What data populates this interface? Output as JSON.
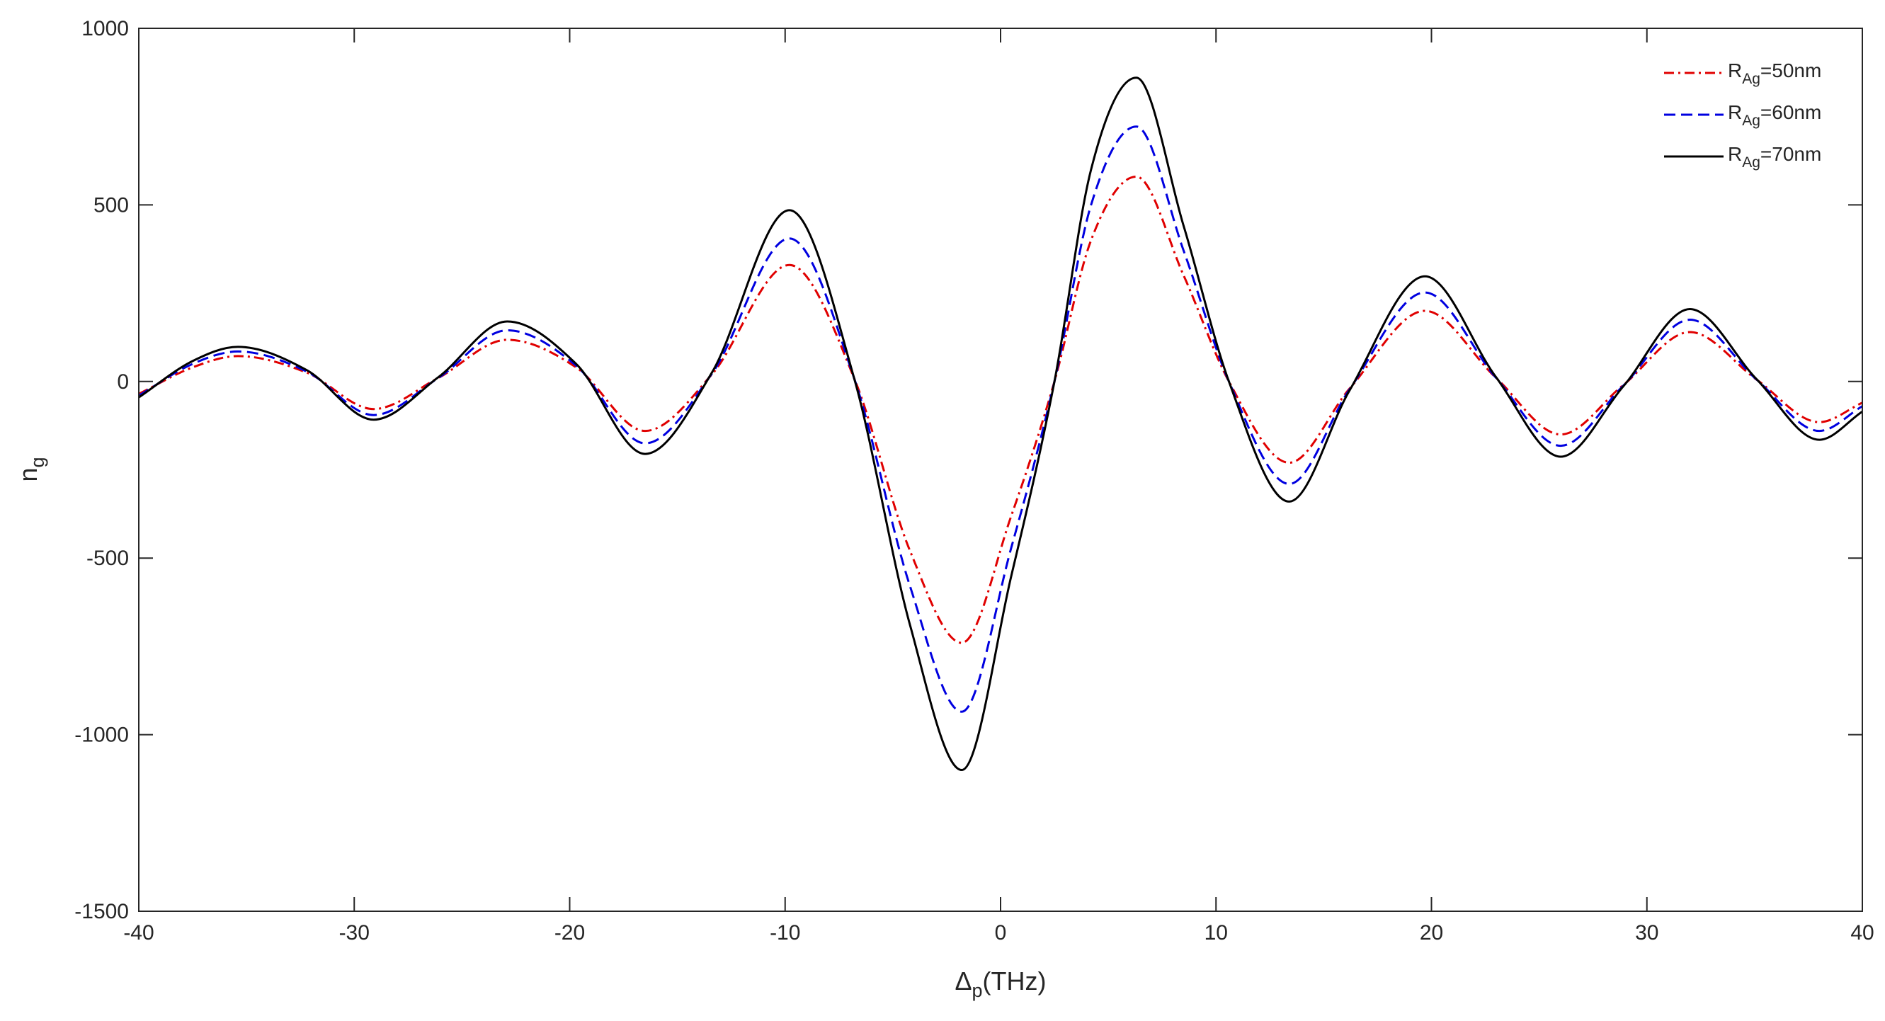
{
  "chart_data": {
    "type": "line",
    "title": "",
    "xlabel": {
      "main": "Δ",
      "sub": "p",
      "rest": "(THz)"
    },
    "ylabel": {
      "main": "n",
      "sub": "g"
    },
    "xlim": [
      -40,
      40
    ],
    "ylim": [
      -1500,
      1000
    ],
    "xticks": [
      -40,
      -30,
      -20,
      -10,
      0,
      10,
      20,
      30,
      40
    ],
    "yticks": [
      -1500,
      -1000,
      -500,
      0,
      500,
      1000
    ],
    "xtick_labels": [
      "-40",
      "-30",
      "-20",
      "-10",
      "0",
      "10",
      "20",
      "30",
      "40"
    ],
    "ytick_labels": [
      "-1500",
      "-1000",
      "-500",
      "0",
      "500",
      "1000"
    ],
    "grid": false,
    "legend_position": "top-right",
    "series": [
      {
        "name": {
          "main": "R",
          "sub": "Ag",
          "rest": "=50nm"
        },
        "color": "#e00000",
        "style": "dash-dot",
        "points": [
          [
            -40,
            -35
          ],
          [
            -37.5,
            40
          ],
          [
            -35.4,
            72
          ],
          [
            -32.2,
            25
          ],
          [
            -29.1,
            -78
          ],
          [
            -26.1,
            10
          ],
          [
            -22.9,
            118
          ],
          [
            -19.7,
            40
          ],
          [
            -16.5,
            -140
          ],
          [
            -13.4,
            20
          ],
          [
            -9.8,
            330
          ],
          [
            -6.8,
            10
          ],
          [
            -4.2,
            -480
          ],
          [
            -1.8,
            -740
          ],
          [
            0.5,
            -380
          ],
          [
            2.5,
            0
          ],
          [
            4.2,
            400
          ],
          [
            6.3,
            580
          ],
          [
            8.5,
            300
          ],
          [
            10.6,
            0
          ],
          [
            13.4,
            -230
          ],
          [
            16.2,
            -20
          ],
          [
            19.7,
            200
          ],
          [
            23,
            10
          ],
          [
            26,
            -150
          ],
          [
            28.9,
            -10
          ],
          [
            32,
            140
          ],
          [
            35.1,
            5
          ],
          [
            38,
            -115
          ],
          [
            40,
            -60
          ]
        ]
      },
      {
        "name": {
          "main": "R",
          "sub": "Ag",
          "rest": "=60nm"
        },
        "color": "#0000e0",
        "style": "dashed",
        "points": [
          [
            -40,
            -40
          ],
          [
            -37.5,
            50
          ],
          [
            -35.4,
            85
          ],
          [
            -32.2,
            28
          ],
          [
            -29.1,
            -95
          ],
          [
            -26.1,
            10
          ],
          [
            -22.9,
            145
          ],
          [
            -19.7,
            45
          ],
          [
            -16.5,
            -175
          ],
          [
            -13.4,
            22
          ],
          [
            -9.8,
            405
          ],
          [
            -6.8,
            10
          ],
          [
            -4.2,
            -580
          ],
          [
            -1.8,
            -935
          ],
          [
            0.5,
            -470
          ],
          [
            2.5,
            0
          ],
          [
            4.2,
            500
          ],
          [
            6.3,
            722
          ],
          [
            8.5,
            370
          ],
          [
            10.6,
            0
          ],
          [
            13.4,
            -290
          ],
          [
            16.2,
            -22
          ],
          [
            19.7,
            252
          ],
          [
            23,
            10
          ],
          [
            26,
            -182
          ],
          [
            28.9,
            -12
          ],
          [
            32,
            175
          ],
          [
            35.1,
            5
          ],
          [
            38,
            -140
          ],
          [
            40,
            -70
          ]
        ]
      },
      {
        "name": {
          "main": "R",
          "sub": "Ag",
          "rest": "=70nm"
        },
        "color": "#000000",
        "style": "solid",
        "points": [
          [
            -40,
            -45
          ],
          [
            -37.5,
            58
          ],
          [
            -35.4,
            98
          ],
          [
            -32.2,
            32
          ],
          [
            -29.1,
            -108
          ],
          [
            -26.1,
            12
          ],
          [
            -22.9,
            170
          ],
          [
            -19.7,
            50
          ],
          [
            -16.5,
            -205
          ],
          [
            -13.4,
            25
          ],
          [
            -9.8,
            485
          ],
          [
            -6.8,
            10
          ],
          [
            -4.2,
            -690
          ],
          [
            -1.8,
            -1100
          ],
          [
            0.5,
            -550
          ],
          [
            2.5,
            0
          ],
          [
            4.2,
            600
          ],
          [
            6.3,
            860
          ],
          [
            8.5,
            440
          ],
          [
            10.6,
            0
          ],
          [
            13.4,
            -340
          ],
          [
            16.2,
            -25
          ],
          [
            19.7,
            298
          ],
          [
            23,
            12
          ],
          [
            26,
            -213
          ],
          [
            28.9,
            -14
          ],
          [
            32,
            205
          ],
          [
            35.1,
            6
          ],
          [
            38,
            -165
          ],
          [
            40,
            -85
          ]
        ]
      }
    ]
  }
}
